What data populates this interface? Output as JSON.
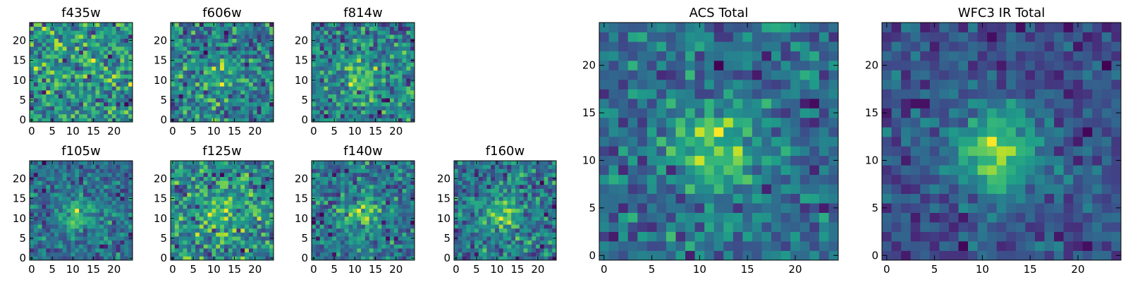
{
  "chart_data": [
    {
      "type": "heatmap",
      "title": "f435w",
      "xticks": [
        "0",
        "5",
        "10",
        "15",
        "20"
      ],
      "yticks": [
        "0",
        "5",
        "10",
        "15",
        "20"
      ],
      "xlim": [
        -0.5,
        24.5
      ],
      "ylim": [
        -0.5,
        24.5
      ],
      "grid": false,
      "colormap": "viridis",
      "seed": 11,
      "peak": 0.1,
      "noise": 1.0
    },
    {
      "type": "heatmap",
      "title": "f606w",
      "xticks": [
        "0",
        "5",
        "10",
        "15",
        "20"
      ],
      "yticks": [
        "0",
        "5",
        "10",
        "15",
        "20"
      ],
      "xlim": [
        -0.5,
        24.5
      ],
      "ylim": [
        -0.5,
        24.5
      ],
      "grid": false,
      "colormap": "viridis",
      "seed": 23,
      "peak": 0.25,
      "noise": 1.0
    },
    {
      "type": "heatmap",
      "title": "f814w",
      "xticks": [
        "0",
        "5",
        "10",
        "15",
        "20"
      ],
      "yticks": [
        "0",
        "5",
        "10",
        "15",
        "20"
      ],
      "xlim": [
        -0.5,
        24.5
      ],
      "ylim": [
        -0.5,
        24.5
      ],
      "grid": false,
      "colormap": "viridis",
      "seed": 37,
      "peak": 0.45,
      "noise": 1.0
    },
    {
      "type": "heatmap",
      "title": "f105w",
      "xticks": [
        "0",
        "5",
        "10",
        "15",
        "20"
      ],
      "yticks": [
        "0",
        "5",
        "10",
        "15",
        "20"
      ],
      "xlim": [
        -0.5,
        24.5
      ],
      "ylim": [
        -0.5,
        24.5
      ],
      "grid": false,
      "colormap": "viridis",
      "seed": 41,
      "peak": 0.6,
      "noise": 0.9
    },
    {
      "type": "heatmap",
      "title": "f125w",
      "xticks": [
        "0",
        "5",
        "10",
        "15",
        "20"
      ],
      "yticks": [
        "0",
        "5",
        "10",
        "15",
        "20"
      ],
      "xlim": [
        -0.5,
        24.5
      ],
      "ylim": [
        -0.5,
        24.5
      ],
      "grid": false,
      "colormap": "viridis",
      "seed": 53,
      "peak": 0.35,
      "noise": 1.0
    },
    {
      "type": "heatmap",
      "title": "f140w",
      "xticks": [
        "0",
        "5",
        "10",
        "15",
        "20"
      ],
      "yticks": [
        "0",
        "5",
        "10",
        "15",
        "20"
      ],
      "xlim": [
        -0.5,
        24.5
      ],
      "ylim": [
        -0.5,
        24.5
      ],
      "grid": false,
      "colormap": "viridis",
      "seed": 67,
      "peak": 0.55,
      "noise": 0.9
    },
    {
      "type": "heatmap",
      "title": "f160w",
      "xticks": [
        "0",
        "5",
        "10",
        "15",
        "20"
      ],
      "yticks": [
        "0",
        "5",
        "10",
        "15",
        "20"
      ],
      "xlim": [
        -0.5,
        24.5
      ],
      "ylim": [
        -0.5,
        24.5
      ],
      "grid": false,
      "colormap": "viridis",
      "seed": 79,
      "peak": 0.55,
      "noise": 0.9
    },
    {
      "type": "heatmap",
      "title": "ACS Total",
      "xticks": [
        "0",
        "5",
        "10",
        "15",
        "20"
      ],
      "yticks": [
        "0",
        "5",
        "10",
        "15",
        "20"
      ],
      "xlim": [
        -0.5,
        24.5
      ],
      "ylim": [
        -0.5,
        24.5
      ],
      "grid": false,
      "colormap": "viridis",
      "seed": 97,
      "peak": 0.7,
      "noise": 0.8
    },
    {
      "type": "heatmap",
      "title": "WFC3 IR Total",
      "xticks": [
        "0",
        "5",
        "10",
        "15",
        "20"
      ],
      "yticks": [
        "0",
        "5",
        "10",
        "15",
        "20"
      ],
      "xlim": [
        -0.5,
        24.5
      ],
      "ylim": [
        -0.5,
        24.5
      ],
      "grid": false,
      "colormap": "viridis",
      "seed": 131,
      "peak": 1.1,
      "noise": 0.7
    }
  ]
}
